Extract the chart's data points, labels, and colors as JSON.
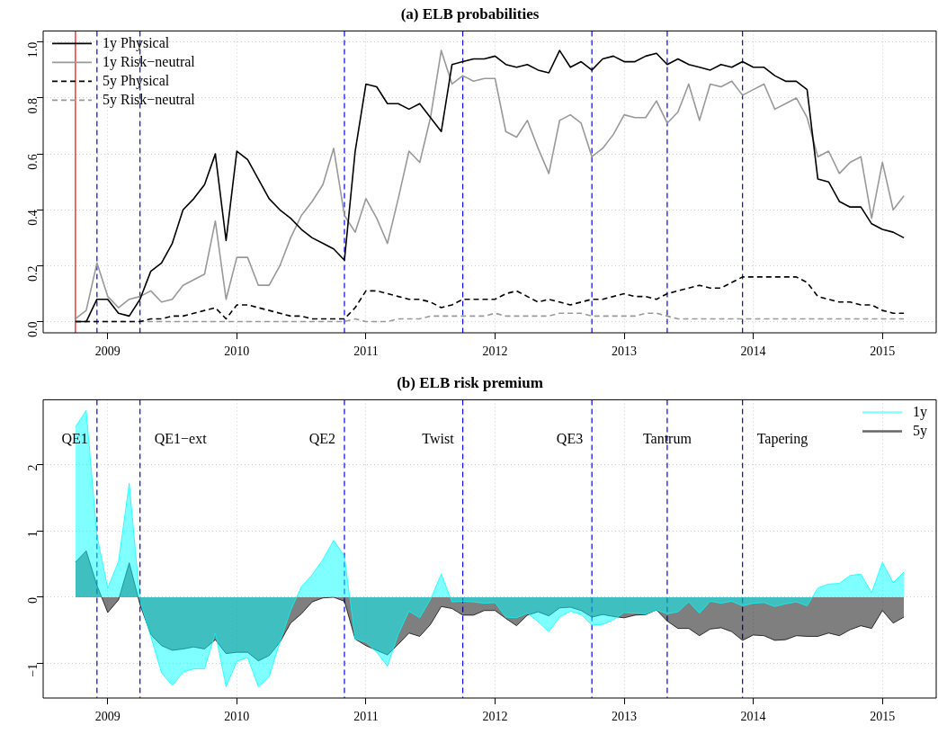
{
  "chart_data": [
    {
      "type": "line",
      "title": "(a) ELB probabilities",
      "x": [
        "2008-10",
        "2008-11",
        "2008-12",
        "2009-01",
        "2009-02",
        "2009-03",
        "2009-04",
        "2009-05",
        "2009-06",
        "2009-07",
        "2009-08",
        "2009-09",
        "2009-10",
        "2009-11",
        "2009-12",
        "2010-01",
        "2010-02",
        "2010-03",
        "2010-04",
        "2010-05",
        "2010-06",
        "2010-07",
        "2010-08",
        "2010-09",
        "2010-10",
        "2010-11",
        "2010-12",
        "2011-01",
        "2011-02",
        "2011-03",
        "2011-04",
        "2011-05",
        "2011-06",
        "2011-07",
        "2011-08",
        "2011-09",
        "2011-10",
        "2011-11",
        "2011-12",
        "2012-01",
        "2012-02",
        "2012-03",
        "2012-04",
        "2012-05",
        "2012-06",
        "2012-07",
        "2012-08",
        "2012-09",
        "2012-10",
        "2012-11",
        "2012-12",
        "2013-01",
        "2013-02",
        "2013-03",
        "2013-04",
        "2013-05",
        "2013-06",
        "2013-07",
        "2013-08",
        "2013-09",
        "2013-10",
        "2013-11",
        "2013-12",
        "2014-01",
        "2014-02",
        "2014-03",
        "2014-04",
        "2014-05",
        "2014-06",
        "2014-07",
        "2014-08",
        "2014-09",
        "2014-10",
        "2014-11",
        "2014-12",
        "2015-01",
        "2015-02",
        "2015-03"
      ],
      "series": [
        {
          "name": "1y Physical",
          "color": "#000000",
          "line_style": "solid",
          "values": [
            0,
            0,
            0.08,
            0.08,
            0.03,
            0.02,
            0.08,
            0.18,
            0.21,
            0.28,
            0.4,
            0.44,
            0.49,
            0.6,
            0.29,
            0.61,
            0.58,
            0.51,
            0.44,
            0.4,
            0.37,
            0.33,
            0.3,
            0.28,
            0.26,
            0.22,
            0.61,
            0.85,
            0.84,
            0.78,
            0.78,
            0.76,
            0.78,
            0.73,
            0.68,
            0.92,
            0.93,
            0.94,
            0.94,
            0.95,
            0.92,
            0.91,
            0.92,
            0.9,
            0.89,
            0.97,
            0.91,
            0.93,
            0.9,
            0.94,
            0.95,
            0.93,
            0.93,
            0.95,
            0.96,
            0.92,
            0.94,
            0.92,
            0.91,
            0.9,
            0.92,
            0.91,
            0.93,
            0.91,
            0.91,
            0.88,
            0.86,
            0.86,
            0.83,
            0.51,
            0.5,
            0.43,
            0.41,
            0.41,
            0.35,
            0.33,
            0.32,
            0.3
          ]
        },
        {
          "name": "1y Risk−neutral",
          "color": "#999999",
          "line_style": "solid",
          "values": [
            0.01,
            0.04,
            0.21,
            0.09,
            0.05,
            0.08,
            0.09,
            0.11,
            0.07,
            0.08,
            0.13,
            0.15,
            0.17,
            0.36,
            0.08,
            0.23,
            0.23,
            0.13,
            0.13,
            0.2,
            0.3,
            0.38,
            0.43,
            0.49,
            0.62,
            0.38,
            0.32,
            0.44,
            0.37,
            0.28,
            0.44,
            0.61,
            0.57,
            0.73,
            0.97,
            0.85,
            0.88,
            0.86,
            0.87,
            0.87,
            0.68,
            0.66,
            0.72,
            0.62,
            0.53,
            0.72,
            0.74,
            0.71,
            0.59,
            0.62,
            0.67,
            0.74,
            0.73,
            0.73,
            0.79,
            0.71,
            0.75,
            0.85,
            0.72,
            0.85,
            0.84,
            0.86,
            0.81,
            0.83,
            0.85,
            0.76,
            0.78,
            0.8,
            0.73,
            0.59,
            0.61,
            0.53,
            0.57,
            0.59,
            0.37,
            0.57,
            0.4,
            0.45
          ]
        },
        {
          "name": "5y Physical",
          "color": "#000000",
          "line_style": "dashed",
          "values": [
            0,
            0,
            0,
            0,
            0,
            0,
            0,
            0.01,
            0.01,
            0.02,
            0.02,
            0.03,
            0.04,
            0.05,
            0.01,
            0.06,
            0.06,
            0.05,
            0.04,
            0.03,
            0.02,
            0.02,
            0.01,
            0.01,
            0.01,
            0.01,
            0.05,
            0.11,
            0.11,
            0.1,
            0.09,
            0.08,
            0.08,
            0.07,
            0.05,
            0.06,
            0.08,
            0.08,
            0.08,
            0.08,
            0.1,
            0.11,
            0.09,
            0.07,
            0.08,
            0.07,
            0.06,
            0.07,
            0.08,
            0.08,
            0.09,
            0.1,
            0.09,
            0.09,
            0.08,
            0.1,
            0.11,
            0.12,
            0.13,
            0.12,
            0.12,
            0.14,
            0.16,
            0.16,
            0.16,
            0.16,
            0.16,
            0.16,
            0.14,
            0.09,
            0.08,
            0.07,
            0.07,
            0.06,
            0.06,
            0.04,
            0.03,
            0.03
          ]
        },
        {
          "name": "5y Risk−neutral",
          "color": "#999999",
          "line_style": "dashed",
          "values": [
            0,
            0,
            0,
            0,
            0,
            0,
            0,
            0,
            0,
            0,
            0,
            0,
            0,
            0,
            0,
            0,
            0,
            0,
            0,
            0,
            0,
            0,
            0,
            0,
            0,
            0,
            0.01,
            0,
            0,
            0,
            0.01,
            0.01,
            0.01,
            0.02,
            0.02,
            0.02,
            0.02,
            0.02,
            0.02,
            0.03,
            0.02,
            0.02,
            0.02,
            0.02,
            0.02,
            0.03,
            0.03,
            0.03,
            0.02,
            0.02,
            0.02,
            0.02,
            0.02,
            0.03,
            0.03,
            0.02,
            0.01,
            0.01,
            0.01,
            0.01,
            0.01,
            0.01,
            0.01,
            0.01,
            0.01,
            0.01,
            0.01,
            0.01,
            0.01,
            0.01,
            0.01,
            0.01,
            0.01,
            0.01,
            0.01,
            0.01,
            0.01,
            0.01
          ]
        }
      ],
      "xlim": [
        "2008-07",
        "2015-06"
      ],
      "xticks": [
        "2009",
        "2010",
        "2011",
        "2012",
        "2013",
        "2014",
        "2015"
      ],
      "ylim": [
        -0.04,
        1.04
      ],
      "yticks": [
        {
          "value": 0,
          "label": "0.0"
        },
        {
          "value": 0.2,
          "label": "0.2"
        },
        {
          "value": 0.4,
          "label": "0.4"
        },
        {
          "value": 0.6,
          "label": "0.6"
        },
        {
          "value": 0.8,
          "label": "0.8"
        },
        {
          "value": 1,
          "label": "1.0"
        }
      ],
      "ref_lines": [
        {
          "axis": "x",
          "value": "2008-10",
          "color": "#ff0000",
          "line_style": "solid"
        },
        {
          "axis": "x",
          "value": "2008-12",
          "color": "#0000ff",
          "line_style": "dashed"
        },
        {
          "axis": "x",
          "value": "2009-04",
          "color": "#0000ff",
          "line_style": "dashed"
        },
        {
          "axis": "x",
          "value": "2010-11",
          "color": "#0000ff",
          "line_style": "dashed"
        },
        {
          "axis": "x",
          "value": "2011-10",
          "color": "#0000ff",
          "line_style": "dashed"
        },
        {
          "axis": "x",
          "value": "2012-10",
          "color": "#0000ff",
          "line_style": "dashed"
        },
        {
          "axis": "x",
          "value": "2013-05",
          "color": "#0000ff",
          "line_style": "dashed"
        },
        {
          "axis": "x",
          "value": "2013-12",
          "color": "#0000ff",
          "line_style": "dashed"
        }
      ],
      "grid": true,
      "legend": "top left"
    },
    {
      "type": "area",
      "title": "(b) ELB risk premium",
      "x": [
        "2008-10",
        "2008-11",
        "2008-12",
        "2009-01",
        "2009-02",
        "2009-03",
        "2009-04",
        "2009-05",
        "2009-06",
        "2009-07",
        "2009-08",
        "2009-09",
        "2009-10",
        "2009-11",
        "2009-12",
        "2010-01",
        "2010-02",
        "2010-03",
        "2010-04",
        "2010-05",
        "2010-06",
        "2010-07",
        "2010-08",
        "2010-09",
        "2010-10",
        "2010-11",
        "2010-12",
        "2011-01",
        "2011-02",
        "2011-03",
        "2011-04",
        "2011-05",
        "2011-06",
        "2011-07",
        "2011-08",
        "2011-09",
        "2011-10",
        "2011-11",
        "2011-12",
        "2012-01",
        "2012-02",
        "2012-03",
        "2012-04",
        "2012-05",
        "2012-06",
        "2012-07",
        "2012-08",
        "2012-09",
        "2012-10",
        "2012-11",
        "2012-12",
        "2013-01",
        "2013-02",
        "2013-03",
        "2013-04",
        "2013-05",
        "2013-06",
        "2013-07",
        "2013-08",
        "2013-09",
        "2013-10",
        "2013-11",
        "2013-12",
        "2014-01",
        "2014-02",
        "2014-03",
        "2014-04",
        "2014-05",
        "2014-06",
        "2014-07",
        "2014-08",
        "2014-09",
        "2014-10",
        "2014-11",
        "2014-12",
        "2015-01",
        "2015-02",
        "2015-03"
      ],
      "series": [
        {
          "name": "1y",
          "color": "#00ffff",
          "values": [
            2.57,
            2.82,
            0.93,
            0.14,
            0.54,
            1.72,
            -0.05,
            -0.59,
            -1.14,
            -1.33,
            -1.13,
            -1.08,
            -1.08,
            -0.54,
            -1.35,
            -0.97,
            -0.91,
            -1.35,
            -1.2,
            -0.68,
            -0.2,
            0.16,
            0.34,
            0.57,
            0.86,
            0.62,
            -0.63,
            -0.68,
            -0.83,
            -1.04,
            -0.56,
            -0.21,
            -0.31,
            -0.03,
            0.35,
            -0.07,
            -0.06,
            -0.07,
            -0.09,
            -0.08,
            -0.3,
            -0.31,
            -0.24,
            -0.37,
            -0.52,
            -0.3,
            -0.21,
            -0.26,
            -0.42,
            -0.41,
            -0.34,
            -0.23,
            -0.24,
            -0.25,
            -0.19,
            -0.25,
            -0.22,
            -0.07,
            -0.24,
            -0.06,
            -0.09,
            -0.06,
            -0.13,
            -0.09,
            -0.08,
            -0.14,
            -0.1,
            -0.07,
            -0.13,
            0.14,
            0.2,
            0.21,
            0.33,
            0.35,
            0.07,
            0.53,
            0.22,
            0.38
          ]
        },
        {
          "name": "5y",
          "color": "#000000",
          "values": [
            0.53,
            0.7,
            0.18,
            -0.23,
            -0.04,
            0.52,
            -0.11,
            -0.56,
            -0.73,
            -0.8,
            -0.78,
            -0.75,
            -0.78,
            -0.64,
            -0.85,
            -0.83,
            -0.83,
            -0.96,
            -0.88,
            -0.68,
            -0.39,
            -0.25,
            -0.07,
            -0.01,
            0.0,
            -0.06,
            -0.63,
            -0.73,
            -0.8,
            -0.87,
            -0.71,
            -0.54,
            -0.59,
            -0.41,
            -0.14,
            -0.17,
            -0.27,
            -0.27,
            -0.2,
            -0.2,
            -0.32,
            -0.43,
            -0.27,
            -0.22,
            -0.28,
            -0.16,
            -0.15,
            -0.2,
            -0.3,
            -0.26,
            -0.29,
            -0.31,
            -0.27,
            -0.26,
            -0.19,
            -0.36,
            -0.47,
            -0.47,
            -0.58,
            -0.48,
            -0.46,
            -0.52,
            -0.65,
            -0.57,
            -0.58,
            -0.65,
            -0.64,
            -0.58,
            -0.59,
            -0.59,
            -0.54,
            -0.58,
            -0.49,
            -0.43,
            -0.47,
            -0.2,
            -0.39,
            -0.3
          ]
        }
      ],
      "xlim": [
        "2008-07",
        "2015-06"
      ],
      "xticks": [
        "2009",
        "2010",
        "2011",
        "2012",
        "2013",
        "2014",
        "2015"
      ],
      "ylim": [
        -1.52,
        2.98
      ],
      "yticks": [
        {
          "value": -1,
          "label": "−1"
        },
        0,
        1,
        2
      ],
      "ref_lines": [
        {
          "axis": "x",
          "value": "2008-12",
          "color": "#0000ff",
          "line_style": "dashed"
        },
        {
          "axis": "x",
          "value": "2009-04",
          "color": "#0000ff",
          "line_style": "dashed"
        },
        {
          "axis": "x",
          "value": "2010-11",
          "color": "#0000ff",
          "line_style": "dashed"
        },
        {
          "axis": "x",
          "value": "2011-10",
          "color": "#0000ff",
          "line_style": "dashed"
        },
        {
          "axis": "x",
          "value": "2012-10",
          "color": "#0000ff",
          "line_style": "dashed"
        },
        {
          "axis": "x",
          "value": "2013-05",
          "color": "#0000ff",
          "line_style": "dashed"
        },
        {
          "axis": "x",
          "value": "2013-12",
          "color": "#0000ff",
          "line_style": "dashed"
        }
      ],
      "annotations": [
        "QE1",
        "QE1−ext",
        "QE2",
        "Twist",
        "QE3",
        "Tantrum",
        "Tapering"
      ],
      "grid": true,
      "legend": "top right"
    }
  ]
}
